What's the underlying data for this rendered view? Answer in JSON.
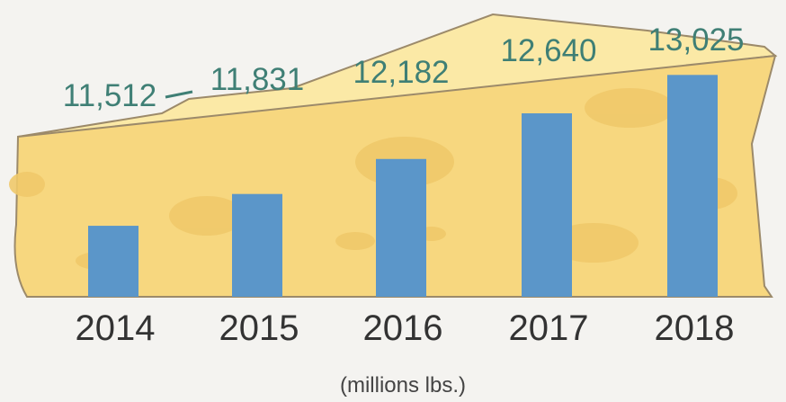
{
  "chart_data": {
    "type": "bar",
    "categories": [
      "2014",
      "2015",
      "2016",
      "2017",
      "2018"
    ],
    "values": [
      11512,
      11831,
      12182,
      12640,
      13025
    ],
    "value_labels": [
      "11,512",
      "11,831",
      "12,182",
      "12,640",
      "13,025"
    ],
    "unit_label": "(millions lbs.)",
    "title": "",
    "xlabel": "",
    "ylabel": "",
    "ylim": [
      10800,
      13100
    ],
    "grid": false,
    "legend": "none"
  },
  "colors": {
    "bar": "#5b96c9",
    "cheese": "#f7d77f",
    "cheese_top": "#fbe9a6",
    "cheese_edge": "#c9a24a",
    "holes": "#f0c96a",
    "value_text": "#3f7f75",
    "axis_text": "#333333",
    "background": "#f4f3f0"
  }
}
